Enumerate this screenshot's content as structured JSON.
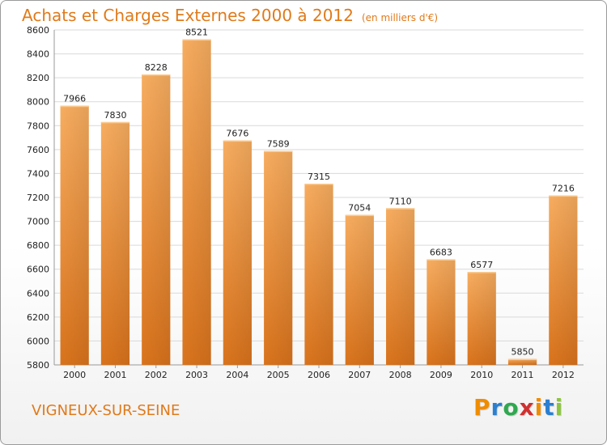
{
  "title": "Achats et Charges Externes 2000 à 2012",
  "unit": "(en milliers d'€)",
  "commune": "VIGNEUX-SUR-SEINE",
  "logo": {
    "letters": [
      "P",
      "r",
      "o",
      "x",
      "i",
      "t",
      "i"
    ],
    "colors": [
      "#f08c00",
      "#2a7fd0",
      "#2fa84f",
      "#d03030",
      "#f08c00",
      "#2a7fd0",
      "#8cc63f"
    ]
  },
  "colors": {
    "bar": "#f0903a",
    "bar_light": "#f7ae63",
    "bar_dark": "#d8701a",
    "text": "#e07a1a"
  },
  "chart_data": {
    "type": "bar",
    "categories": [
      "2000",
      "2001",
      "2002",
      "2003",
      "2004",
      "2005",
      "2006",
      "2007",
      "2008",
      "2009",
      "2010",
      "2011",
      "2012"
    ],
    "values": [
      7966,
      7830,
      8228,
      8521,
      7676,
      7589,
      7315,
      7054,
      7110,
      6683,
      6577,
      5850,
      7216
    ],
    "ylim": [
      5800,
      8600
    ],
    "yticks": [
      5800,
      6000,
      6200,
      6400,
      6600,
      6800,
      7000,
      7200,
      7400,
      7600,
      7800,
      8000,
      8200,
      8400,
      8600
    ],
    "grid": true,
    "xlabel": "",
    "ylabel": ""
  }
}
